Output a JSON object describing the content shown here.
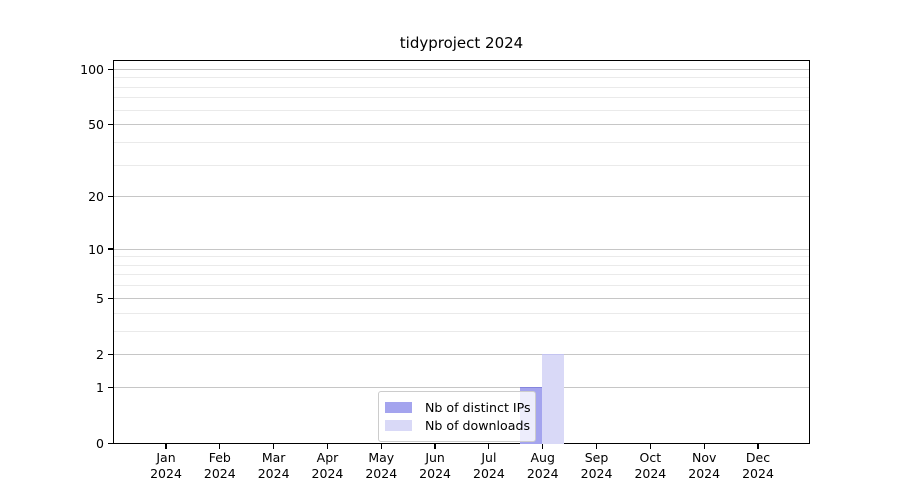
{
  "chart_data": {
    "type": "bar",
    "title": "tidyproject 2024",
    "x_year": "2024",
    "categories": [
      "Jan",
      "Feb",
      "Mar",
      "Apr",
      "May",
      "Jun",
      "Jul",
      "Aug",
      "Sep",
      "Oct",
      "Nov",
      "Dec"
    ],
    "series": [
      {
        "name": "Nb of distinct IPs",
        "color": "#a4a4ee",
        "edge": "#8585dd",
        "values": [
          0,
          0,
          0,
          0,
          0,
          0,
          0,
          1,
          0,
          0,
          0,
          0
        ]
      },
      {
        "name": "Nb of downloads",
        "color": "#d9d9f7",
        "edge": "#c4c4f0",
        "values": [
          0,
          0,
          0,
          0,
          0,
          0,
          0,
          2,
          0,
          0,
          0,
          0
        ]
      }
    ],
    "yscale": "log1p",
    "ylim": [
      0,
      110
    ],
    "y_major_ticks": [
      0,
      1,
      2,
      5,
      10,
      20,
      50,
      100
    ],
    "y_minor_ticks": [
      3,
      4,
      6,
      7,
      8,
      9,
      30,
      40,
      60,
      70,
      80,
      90
    ],
    "grid": "horizontal",
    "legend_position": "inside lower-center",
    "grid_major_color": "#c6c6c6",
    "grid_minor_color": "#eaeaea",
    "axis_color": "#000000"
  }
}
